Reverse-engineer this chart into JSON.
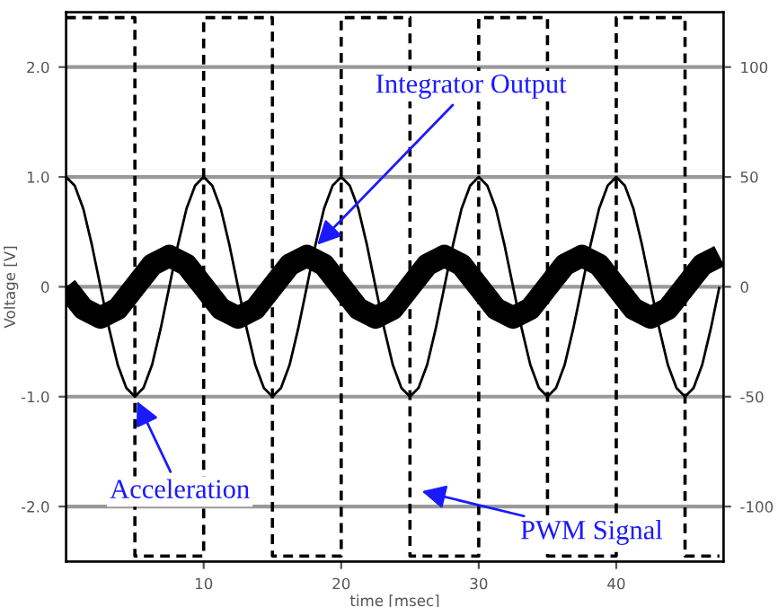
{
  "chart_data": {
    "type": "line",
    "xlabel": "time [msec]",
    "ylabel": "Voltage [V]",
    "xlim": [
      0,
      47.8
    ],
    "xticks": [
      10,
      20,
      30,
      40
    ],
    "ylim": [
      -2.5,
      2.5
    ],
    "yticks": [
      {
        "value": -2,
        "label": "-2.0"
      },
      {
        "value": -1,
        "label": "-1.0"
      },
      0,
      {
        "value": 1,
        "label": "1.0"
      },
      {
        "value": 2,
        "label": "2.0"
      }
    ],
    "y2lim": [
      -125,
      125
    ],
    "y2ticks": [
      -100,
      -50,
      0,
      50,
      100
    ],
    "grid": "y",
    "legend": false,
    "series": [
      {
        "type": "step",
        "color": "#000000",
        "line_style": "dashed",
        "x": [
          0,
          5,
          10,
          15,
          20,
          25,
          30,
          35,
          40,
          45,
          47.5
        ],
        "values": [
          2.45,
          -2.45,
          2.45,
          -2.45,
          2.45,
          -2.45,
          2.45,
          -2.45,
          2.45,
          -2.45,
          -2.45
        ]
      },
      {
        "color": "#000000",
        "x": [
          0,
          0.625,
          1.25,
          1.875,
          2.5,
          3.125,
          3.75,
          4.375,
          5,
          5.625,
          6.25,
          6.875,
          7.5,
          8.125,
          8.75,
          9.375,
          10,
          10.625,
          11.25,
          11.875,
          12.5,
          13.125,
          13.75,
          14.375,
          15,
          15.625,
          16.25,
          16.875,
          17.5,
          18.125,
          18.75,
          19.375,
          20,
          20.625,
          21.25,
          21.875,
          22.5,
          23.125,
          23.75,
          24.375,
          25,
          25.625,
          26.25,
          26.875,
          27.5,
          28.125,
          28.75,
          29.375,
          30,
          30.625,
          31.25,
          31.875,
          32.5,
          33.125,
          33.75,
          34.375,
          35,
          35.625,
          36.25,
          36.875,
          37.5,
          38.125,
          38.75,
          39.375,
          40,
          40.625,
          41.25,
          41.875,
          42.5,
          43.125,
          43.75,
          44.375,
          45,
          45.625,
          46.25,
          46.875,
          47.5
        ],
        "values": [
          1,
          0.92,
          0.71,
          0.38,
          0,
          -0.38,
          -0.71,
          -0.92,
          -1,
          -0.92,
          -0.71,
          -0.38,
          0,
          0.38,
          0.71,
          0.92,
          1,
          0.92,
          0.71,
          0.38,
          0,
          -0.38,
          -0.71,
          -0.92,
          -1,
          -0.92,
          -0.71,
          -0.38,
          0,
          0.38,
          0.71,
          0.92,
          1,
          0.92,
          0.71,
          0.38,
          0,
          -0.38,
          -0.71,
          -0.92,
          -1,
          -0.92,
          -0.71,
          -0.38,
          0,
          0.38,
          0.71,
          0.92,
          1,
          0.92,
          0.71,
          0.38,
          0,
          -0.38,
          -0.71,
          -0.92,
          -1,
          -0.92,
          -0.71,
          -0.38,
          0,
          0.38,
          0.71,
          0.92,
          1,
          0.92,
          0.71,
          0.38,
          0,
          -0.38,
          -0.71,
          -0.92,
          -1,
          -0.92,
          -0.71,
          -0.38,
          0
        ]
      },
      {
        "color": "#000000",
        "x": [
          0,
          1.25,
          2.5,
          3.75,
          5,
          6.25,
          7.5,
          8.75,
          10,
          11.25,
          12.5,
          13.75,
          15,
          16.25,
          17.5,
          18.75,
          20,
          21.25,
          22.5,
          23.75,
          25,
          26.25,
          27.5,
          28.75,
          30,
          31.25,
          32.5,
          33.75,
          35,
          36.25,
          37.5,
          38.75,
          40,
          41.25,
          42.5,
          43.75,
          45,
          46.25,
          47.5
        ],
        "values": [
          0,
          -0.2,
          -0.28,
          -0.2,
          0,
          0.2,
          0.28,
          0.2,
          0,
          -0.2,
          -0.28,
          -0.2,
          0,
          0.2,
          0.28,
          0.2,
          0,
          -0.2,
          -0.28,
          -0.2,
          0,
          0.2,
          0.28,
          0.2,
          0,
          -0.2,
          -0.28,
          -0.2,
          0,
          0.2,
          0.28,
          0.2,
          0,
          -0.2,
          -0.28,
          -0.2,
          0,
          0.2,
          0.28
        ]
      }
    ],
    "annotations": [
      {
        "text": "Integrator Output",
        "x": 18,
        "y": 0.35
      },
      {
        "text": "Acceleration",
        "x": 5,
        "y": -1
      },
      {
        "text": "PWM Signal",
        "x": 25.5,
        "y": -1.85
      }
    ]
  }
}
